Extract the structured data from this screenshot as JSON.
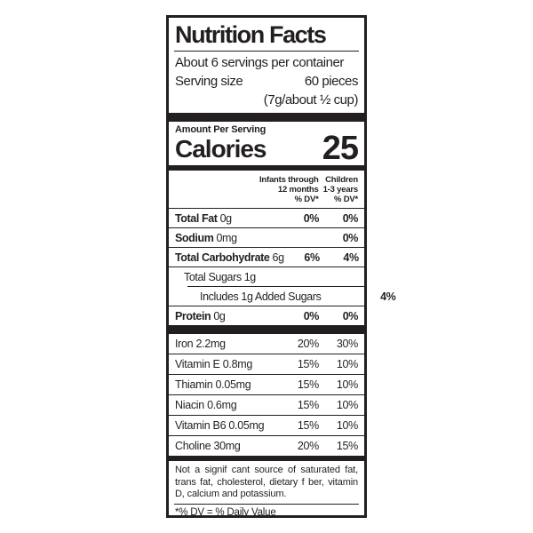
{
  "colors": {
    "ink": "#231f20",
    "background": "#ffffff"
  },
  "label": {
    "title": "Nutrition Facts",
    "servings_per_container": "About 6 servings per container",
    "serving_size_label": "Serving size",
    "serving_size_value": "60 pieces",
    "serving_size_detail": "(7g/about ½ cup)",
    "amount_per_serving": "Amount Per Serving",
    "calories_label": "Calories",
    "calories_value": "25",
    "column_headers": {
      "col1_line1": "Infants through",
      "col1_line2": "12 months",
      "col1_line3": "% DV*",
      "col2_line1": "Children",
      "col2_line2": "1-3 years",
      "col2_line3": "% DV*"
    },
    "nutrients": [
      {
        "bold": "Total Fat",
        "rest": " 0g",
        "col1": "0%",
        "col2": "0%"
      },
      {
        "bold": "Sodium",
        "rest": " 0mg",
        "col1": "",
        "col2": "0%"
      },
      {
        "bold": "Total Carbohydrate",
        "rest": " 6g",
        "col1": "6%",
        "col2": "4%"
      },
      {
        "bold": "",
        "rest": "Total Sugars 1g",
        "col1": "",
        "col2": ""
      },
      {
        "bold": "",
        "rest": "Includes 1g Added Sugars",
        "col1": "",
        "col2": "4%"
      },
      {
        "bold": "Protein",
        "rest": " 0g",
        "col1": "0%",
        "col2": "0%"
      }
    ],
    "vitamins": [
      {
        "name": "Iron 2.2mg",
        "col1": "20%",
        "col2": "30%"
      },
      {
        "name": "Vitamin E 0.8mg",
        "col1": "15%",
        "col2": "10%"
      },
      {
        "name": "Thiamin 0.05mg",
        "col1": "15%",
        "col2": "10%"
      },
      {
        "name": "Niacin 0.6mg",
        "col1": "15%",
        "col2": "10%"
      },
      {
        "name": "Vitamin B6 0.05mg",
        "col1": "15%",
        "col2": "10%"
      },
      {
        "name": "Choline 30mg",
        "col1": "20%",
        "col2": "15%"
      }
    ],
    "footnote": "Not a signif cant source of saturated fat, trans fat, cholesterol, dietary f ber, vitamin D, calcium and potassium.",
    "dv_note": "*% DV = % Daily Value"
  }
}
